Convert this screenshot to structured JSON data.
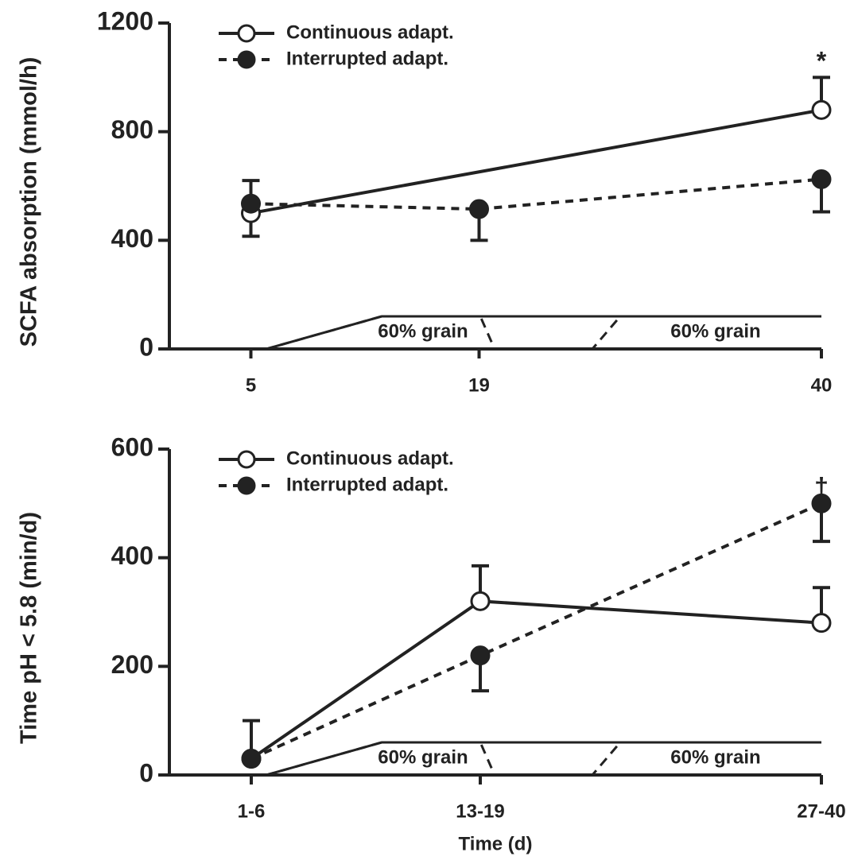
{
  "chart_data": [
    {
      "type": "line",
      "ylabel": "SCFA absorption (mmol/h)",
      "xlim": [
        0,
        40
      ],
      "xticks": [
        5,
        19,
        40
      ],
      "ylim": [
        0,
        1200
      ],
      "yticks": [
        0,
        400,
        800,
        1200
      ],
      "annotation": "*",
      "schedule_labels": [
        "60% grain",
        "60% grain"
      ],
      "series": [
        {
          "name": "Continuous adapt.",
          "color": "#222222",
          "line_style": "solid",
          "marker": "open",
          "x": [
            5,
            40
          ],
          "values": [
            500,
            880
          ],
          "errors": [
            85,
            120
          ],
          "error_side": [
            "down",
            "up"
          ]
        },
        {
          "name": "Interrupted adapt.",
          "color": "#222222",
          "line_style": "dashed",
          "marker": "filled",
          "x": [
            5,
            19,
            40
          ],
          "values": [
            535,
            515,
            625
          ],
          "errors": [
            85,
            115,
            120
          ],
          "error_side": [
            "up",
            "down",
            "down"
          ]
        }
      ]
    },
    {
      "type": "line",
      "ylabel": "Time pH < 5.8  (min/d)",
      "xlabel": "Time  (d)",
      "categories": [
        "1-6",
        "13-19",
        "27-40"
      ],
      "ylim": [
        0,
        600
      ],
      "yticks": [
        0,
        200,
        400,
        600
      ],
      "annotation": "†",
      "schedule_labels": [
        "60% grain",
        "60% grain"
      ],
      "series": [
        {
          "name": "Continuous adapt.",
          "color": "#222222",
          "line_style": "solid",
          "marker": "open",
          "values": [
            30,
            320,
            280
          ],
          "errors": [
            70,
            65,
            65
          ],
          "error_side": [
            "up",
            "up",
            "up"
          ]
        },
        {
          "name": "Interrupted adapt.",
          "color": "#222222",
          "line_style": "dashed",
          "marker": "filled",
          "values": [
            30,
            220,
            500
          ],
          "errors": [
            0,
            65,
            70
          ],
          "error_side": [
            "down",
            "down",
            "down"
          ]
        }
      ]
    }
  ]
}
